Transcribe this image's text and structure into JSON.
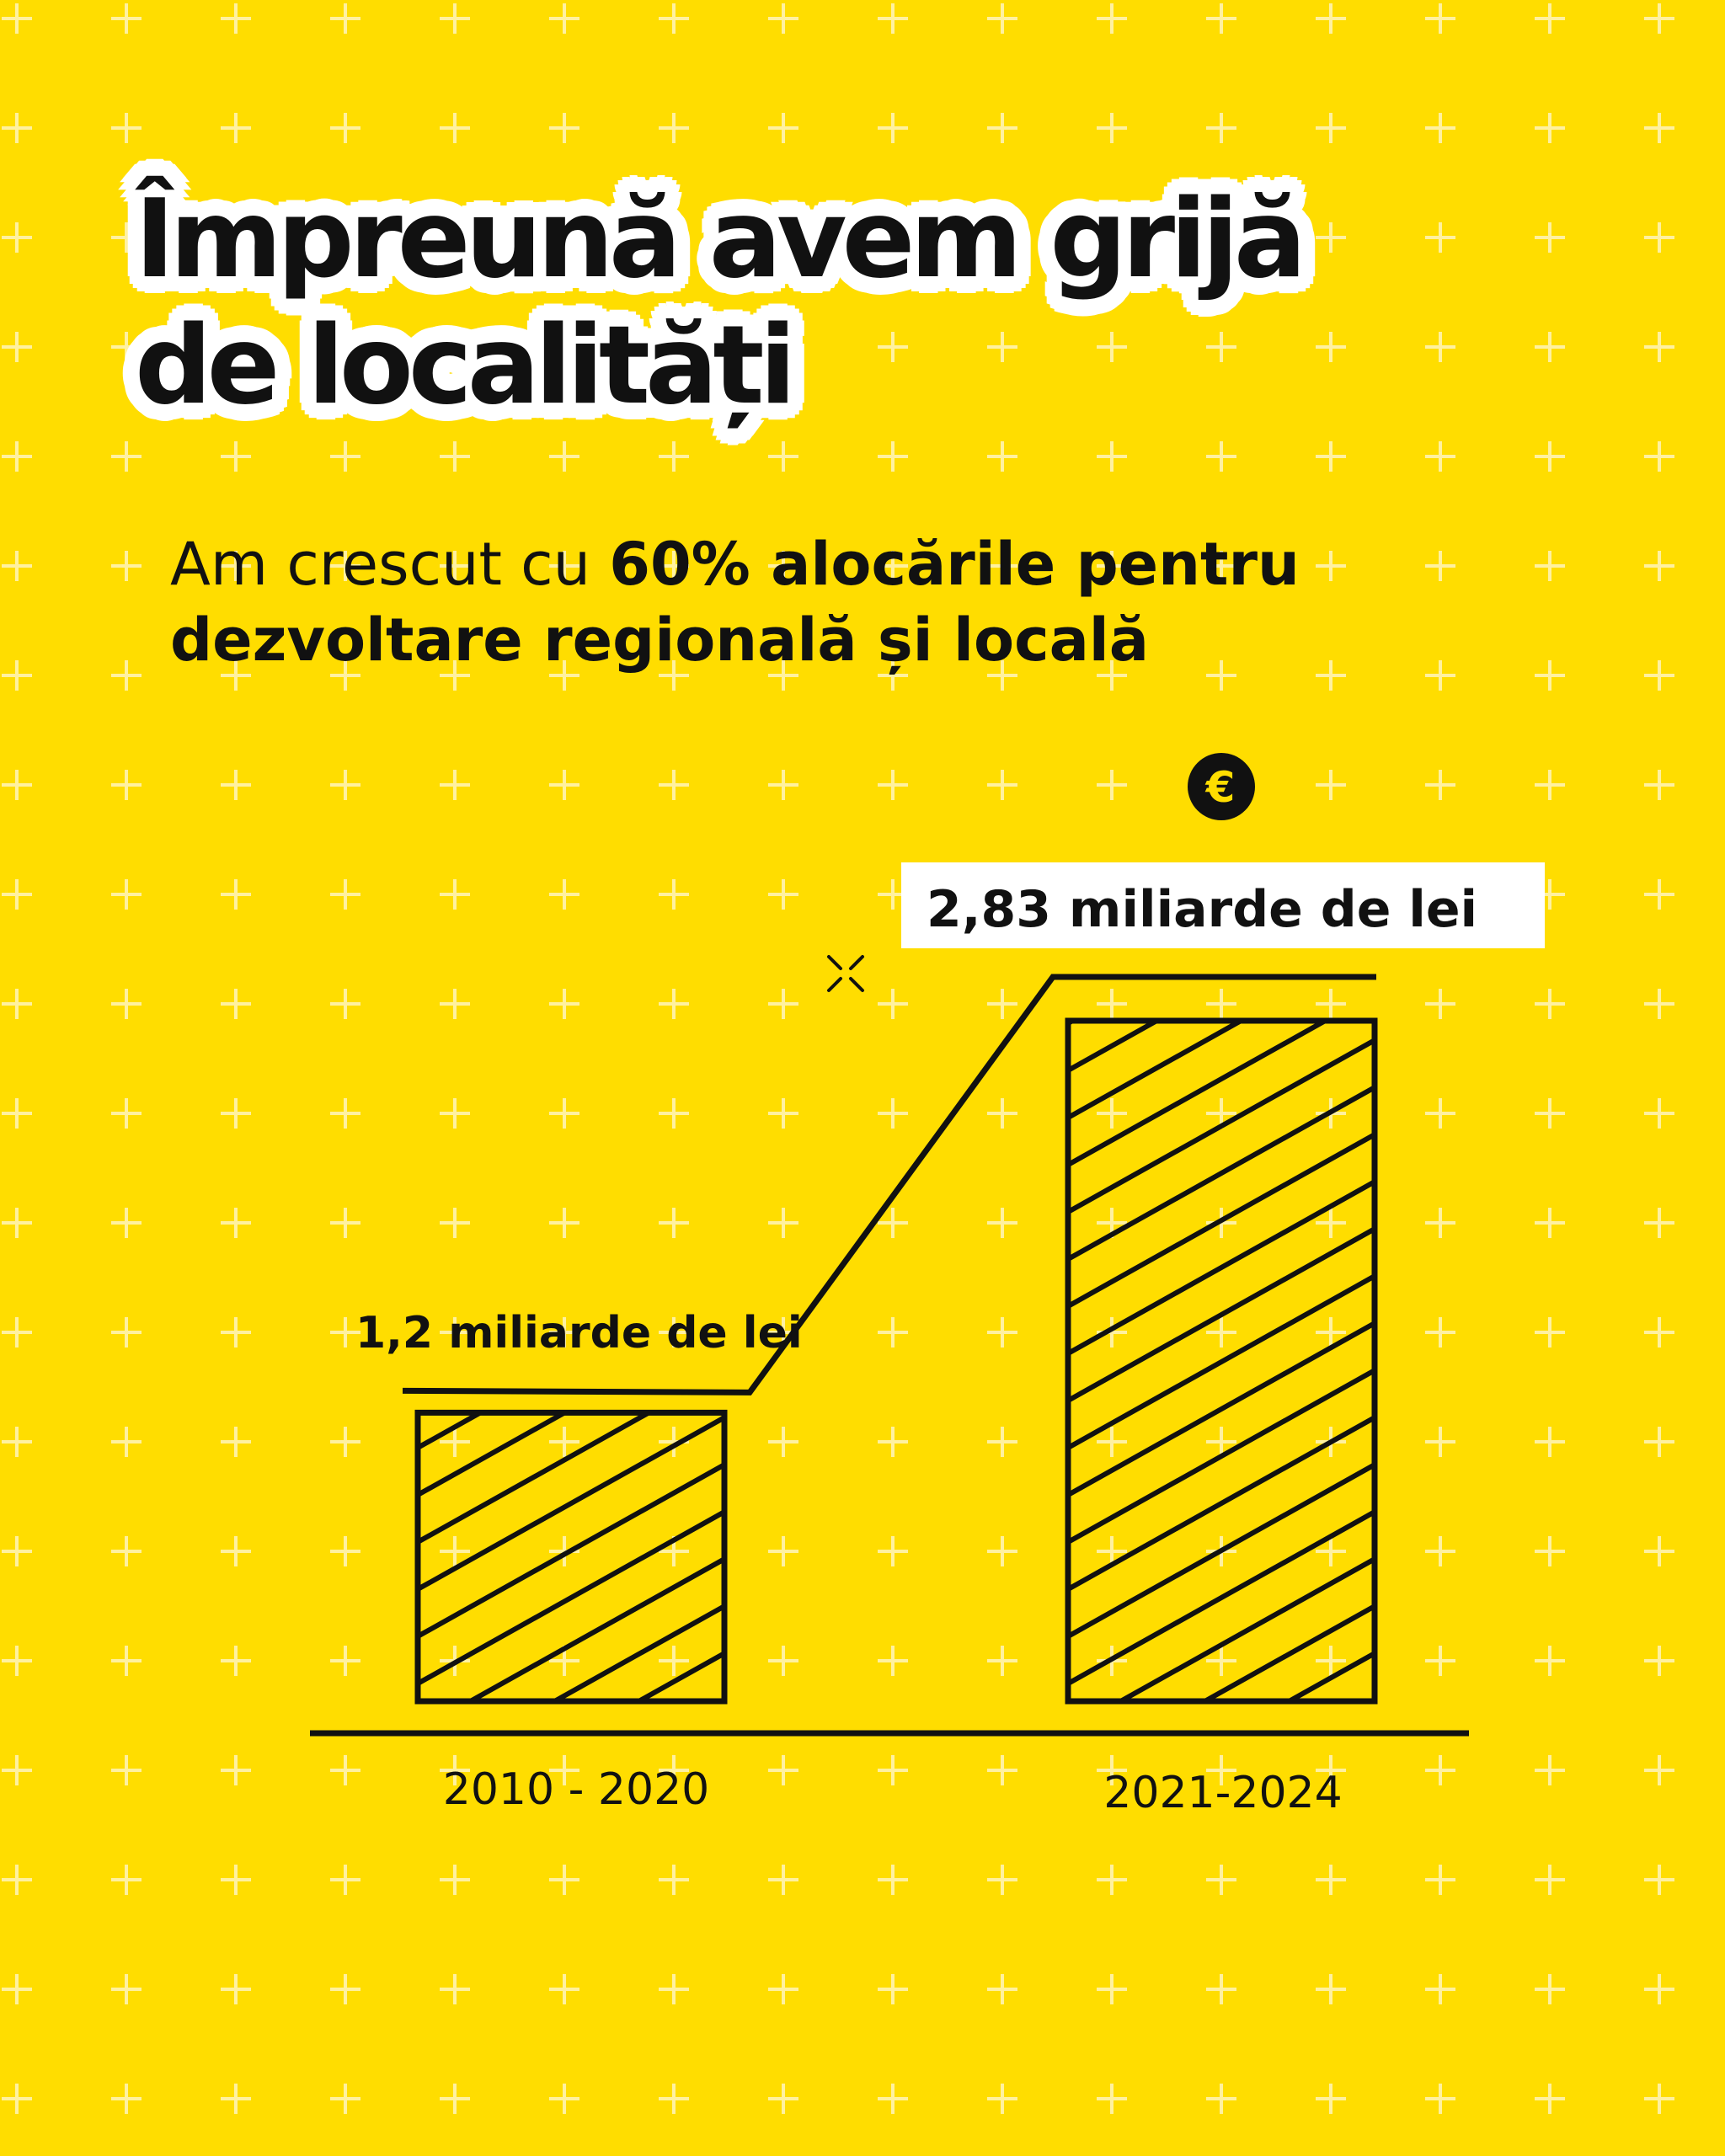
{
  "colors": {
    "background": "#FFDD00",
    "ink": "#111111",
    "pattern": "#FFF1A0",
    "label_box": "#FFFFFF"
  },
  "title": {
    "line1": "Împreună avem grijă",
    "line2": "de localități"
  },
  "subtitle": {
    "prefix": "Am crescut cu ",
    "highlight_line1": "60% alocările pentru",
    "highlight_line2": "dezvoltare regională și locală"
  },
  "icons": {
    "currency": {
      "name": "euro-coin-icon",
      "glyph": "€"
    },
    "sparkle": {
      "name": "sparkle-icon"
    }
  },
  "chart_data": {
    "type": "bar",
    "title": "",
    "xlabel": "",
    "ylabel": "",
    "categories": [
      "2010 - 2020",
      "2021-2024"
    ],
    "values": [
      1.2,
      2.83
    ],
    "value_labels": [
      "1,2 miliarde de lei",
      "2,83 miliarde de lei"
    ],
    "unit": "miliarde de lei",
    "ylim": [
      0,
      2.83
    ],
    "grid": false,
    "legend": "none",
    "bar_style": "hatched",
    "trend_line": true
  }
}
